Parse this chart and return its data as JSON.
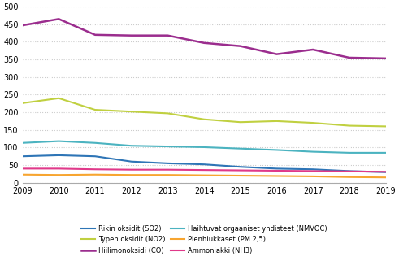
{
  "years": [
    2009,
    2010,
    2011,
    2012,
    2013,
    2014,
    2015,
    2016,
    2017,
    2018,
    2019
  ],
  "series": {
    "Rikin oksidit (SO2)": {
      "values": [
        75,
        78,
        75,
        60,
        55,
        52,
        45,
        40,
        38,
        33,
        30
      ],
      "color": "#2e75b6",
      "linestyle": "solid",
      "linewidth": 1.5
    },
    "Typen oksidit (NO2)": {
      "values": [
        226,
        240,
        207,
        202,
        197,
        180,
        172,
        175,
        170,
        162,
        160
      ],
      "color": "#c0d040",
      "linestyle": "solid",
      "linewidth": 1.5
    },
    "Hiilimonoksidi (CO)": {
      "values": [
        447,
        465,
        420,
        418,
        418,
        397,
        388,
        365,
        378,
        355,
        353
      ],
      "color": "#9b2d8e",
      "linestyle": "solid",
      "linewidth": 1.8
    },
    "Haihtuvat orgaaniset yhdisteet (NMVOC)": {
      "values": [
        113,
        118,
        113,
        105,
        103,
        101,
        97,
        93,
        88,
        85,
        85
      ],
      "color": "#4bb3c0",
      "linestyle": "solid",
      "linewidth": 1.5
    },
    "Pienhiukkaset (PM 2,5)": {
      "values": [
        23,
        22,
        23,
        22,
        22,
        21,
        20,
        19,
        18,
        16,
        15
      ],
      "color": "#f7a530",
      "linestyle": "solid",
      "linewidth": 1.5
    },
    "Ammoniakki (NH3)": {
      "values": [
        40,
        40,
        38,
        37,
        37,
        36,
        35,
        34,
        33,
        32,
        31
      ],
      "color": "#e0398a",
      "linestyle": "solid",
      "linewidth": 1.5
    }
  },
  "ylim": [
    0,
    500
  ],
  "yticks": [
    0,
    50,
    100,
    150,
    200,
    250,
    300,
    350,
    400,
    450,
    500
  ],
  "background_color": "#ffffff",
  "grid_color": "#cccccc",
  "legend_col1": [
    "Rikin oksidit (SO2)",
    "Hiilimonoksidi (CO)",
    "Pienhiukkaset (PM 2,5)"
  ],
  "legend_col2": [
    "Typen oksidit (NO2)",
    "Haihtuvat orgaaniset yhdisteet (NMVOC)",
    "Ammoniakki (NH3)"
  ]
}
